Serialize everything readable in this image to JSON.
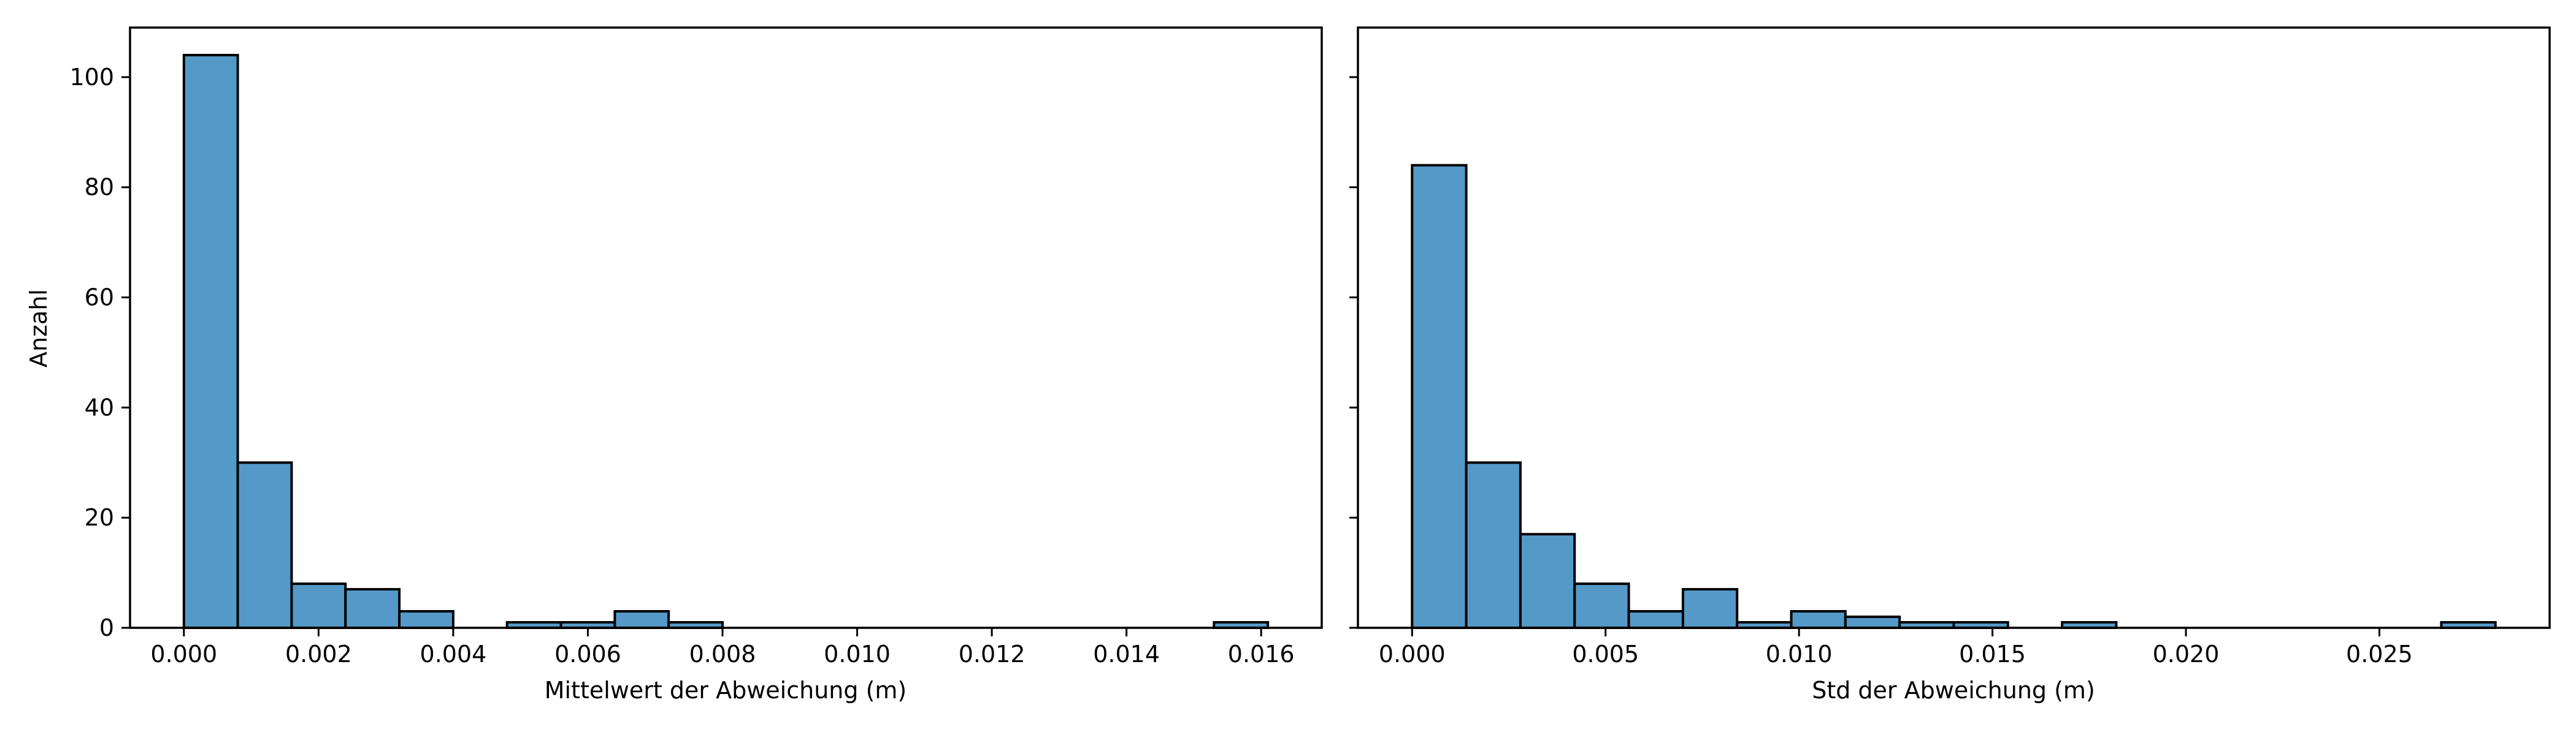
{
  "colors": {
    "bar_fill": "#5499c7",
    "bar_edge": "#000000"
  },
  "chart_data": [
    {
      "type": "bar",
      "title": "",
      "xlabel": "Mittelwert der Abweichung (m)",
      "ylabel": "Anzahl",
      "xlim": [
        -0.0008,
        0.0169
      ],
      "ylim": [
        0,
        109
      ],
      "xticks": [
        0.0,
        0.002,
        0.004,
        0.006,
        0.008,
        0.01,
        0.012,
        0.014,
        0.016
      ],
      "xtick_labels": [
        "0.000",
        "0.002",
        "0.004",
        "0.006",
        "0.008",
        "0.010",
        "0.012",
        "0.014",
        "0.016"
      ],
      "yticks": [
        0,
        20,
        40,
        60,
        80,
        100
      ],
      "ytick_labels": [
        "0",
        "20",
        "40",
        "60",
        "80",
        "100"
      ],
      "grid": false,
      "bins": [
        {
          "x0": 0.0,
          "x1": 0.0008,
          "count": 104
        },
        {
          "x0": 0.0008,
          "x1": 0.0016,
          "count": 30
        },
        {
          "x0": 0.0016,
          "x1": 0.0024,
          "count": 8
        },
        {
          "x0": 0.0024,
          "x1": 0.0032,
          "count": 7
        },
        {
          "x0": 0.0032,
          "x1": 0.004,
          "count": 3
        },
        {
          "x0": 0.0048,
          "x1": 0.0056,
          "count": 1
        },
        {
          "x0": 0.0056,
          "x1": 0.0064,
          "count": 1
        },
        {
          "x0": 0.0064,
          "x1": 0.0072,
          "count": 3
        },
        {
          "x0": 0.0072,
          "x1": 0.008,
          "count": 1
        },
        {
          "x0": 0.0153,
          "x1": 0.0161,
          "count": 1
        }
      ]
    },
    {
      "type": "bar",
      "title": "",
      "xlabel": "Std der Abweichung (m)",
      "ylabel": "",
      "xlim": [
        -0.0014,
        0.0294
      ],
      "ylim": [
        0,
        109
      ],
      "xticks": [
        0.0,
        0.005,
        0.01,
        0.015,
        0.02,
        0.025
      ],
      "xtick_labels": [
        "0.000",
        "0.005",
        "0.010",
        "0.015",
        "0.020",
        "0.025"
      ],
      "yticks": [
        0,
        20,
        40,
        60,
        80,
        100
      ],
      "ytick_labels": [],
      "grid": false,
      "bins": [
        {
          "x0": 0.0,
          "x1": 0.0014,
          "count": 84
        },
        {
          "x0": 0.0014,
          "x1": 0.0028,
          "count": 30
        },
        {
          "x0": 0.0028,
          "x1": 0.0042,
          "count": 17
        },
        {
          "x0": 0.0042,
          "x1": 0.0056,
          "count": 8
        },
        {
          "x0": 0.0056,
          "x1": 0.007,
          "count": 3
        },
        {
          "x0": 0.007,
          "x1": 0.0084,
          "count": 7
        },
        {
          "x0": 0.0084,
          "x1": 0.0098,
          "count": 1
        },
        {
          "x0": 0.0098,
          "x1": 0.0112,
          "count": 3
        },
        {
          "x0": 0.0112,
          "x1": 0.0126,
          "count": 2
        },
        {
          "x0": 0.0126,
          "x1": 0.014,
          "count": 1
        },
        {
          "x0": 0.014,
          "x1": 0.0154,
          "count": 1
        },
        {
          "x0": 0.0168,
          "x1": 0.0182,
          "count": 1
        },
        {
          "x0": 0.0266,
          "x1": 0.028,
          "count": 1
        }
      ]
    }
  ]
}
